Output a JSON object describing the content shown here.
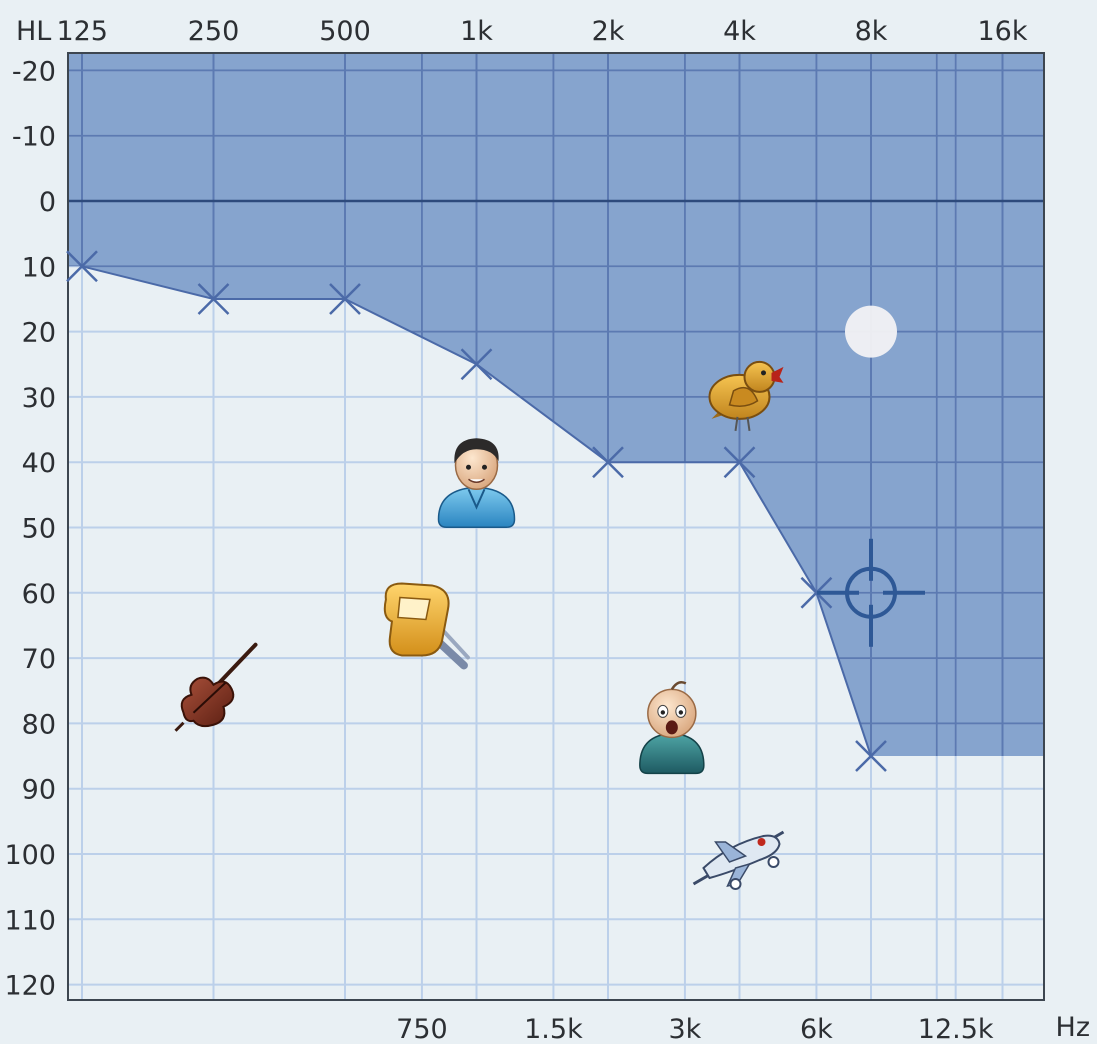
{
  "chart_data": {
    "type": "line",
    "title": "",
    "ylabel": "HL",
    "xlabel": "Hz",
    "x_scale": "log2",
    "y_inverted": true,
    "ylim": [
      -20,
      120
    ],
    "top_ticks": [
      {
        "hz": 125,
        "label": "125"
      },
      {
        "hz": 250,
        "label": "250"
      },
      {
        "hz": 500,
        "label": "500"
      },
      {
        "hz": 1000,
        "label": "1k"
      },
      {
        "hz": 2000,
        "label": "2k"
      },
      {
        "hz": 4000,
        "label": "4k"
      },
      {
        "hz": 8000,
        "label": "8k"
      },
      {
        "hz": 16000,
        "label": "16k"
      }
    ],
    "bottom_ticks": [
      {
        "hz": 750,
        "label": "750"
      },
      {
        "hz": 1500,
        "label": "1.5k"
      },
      {
        "hz": 3000,
        "label": "3k"
      },
      {
        "hz": 6000,
        "label": "6k"
      },
      {
        "hz": 12500,
        "label": "12.5k"
      }
    ],
    "y_ticks": [
      -20,
      -10,
      0,
      10,
      20,
      30,
      40,
      50,
      60,
      70,
      80,
      90,
      100,
      110,
      120
    ],
    "series": [
      {
        "marker": "x",
        "points": [
          {
            "hz": 125,
            "hl": 10
          },
          {
            "hz": 250,
            "hl": 15
          },
          {
            "hz": 500,
            "hl": 15
          },
          {
            "hz": 1000,
            "hl": 25
          },
          {
            "hz": 2000,
            "hl": 40
          },
          {
            "hz": 4000,
            "hl": 40
          },
          {
            "hz": 6000,
            "hl": 60
          },
          {
            "hz": 8000,
            "hl": 85
          }
        ]
      }
    ],
    "sound_icons": [
      {
        "name": "bird",
        "hz": 4000,
        "hl": 30
      },
      {
        "name": "man",
        "hz": 1000,
        "hl": 42
      },
      {
        "name": "mixer",
        "hz": 750,
        "hl": 65
      },
      {
        "name": "double-bass",
        "hz": 250,
        "hl": 75
      },
      {
        "name": "baby",
        "hz": 2800,
        "hl": 80
      },
      {
        "name": "airplane",
        "hz": 4000,
        "hl": 100
      }
    ],
    "cursor": {
      "hz": 8000,
      "hl": 60
    },
    "marker_dot": {
      "hz": 8000,
      "hl": 20
    },
    "grid": true,
    "colors": {
      "background": "#e9f0f4",
      "shaded_region": "#86a4ce",
      "gridline": "#bcd0ea",
      "gridline_in_shade": "#5c7ab2",
      "curve": "#4b6aa8",
      "zero_line": "#2d4a7c",
      "border": "#3d4650",
      "cursor": "#2e5896"
    }
  }
}
